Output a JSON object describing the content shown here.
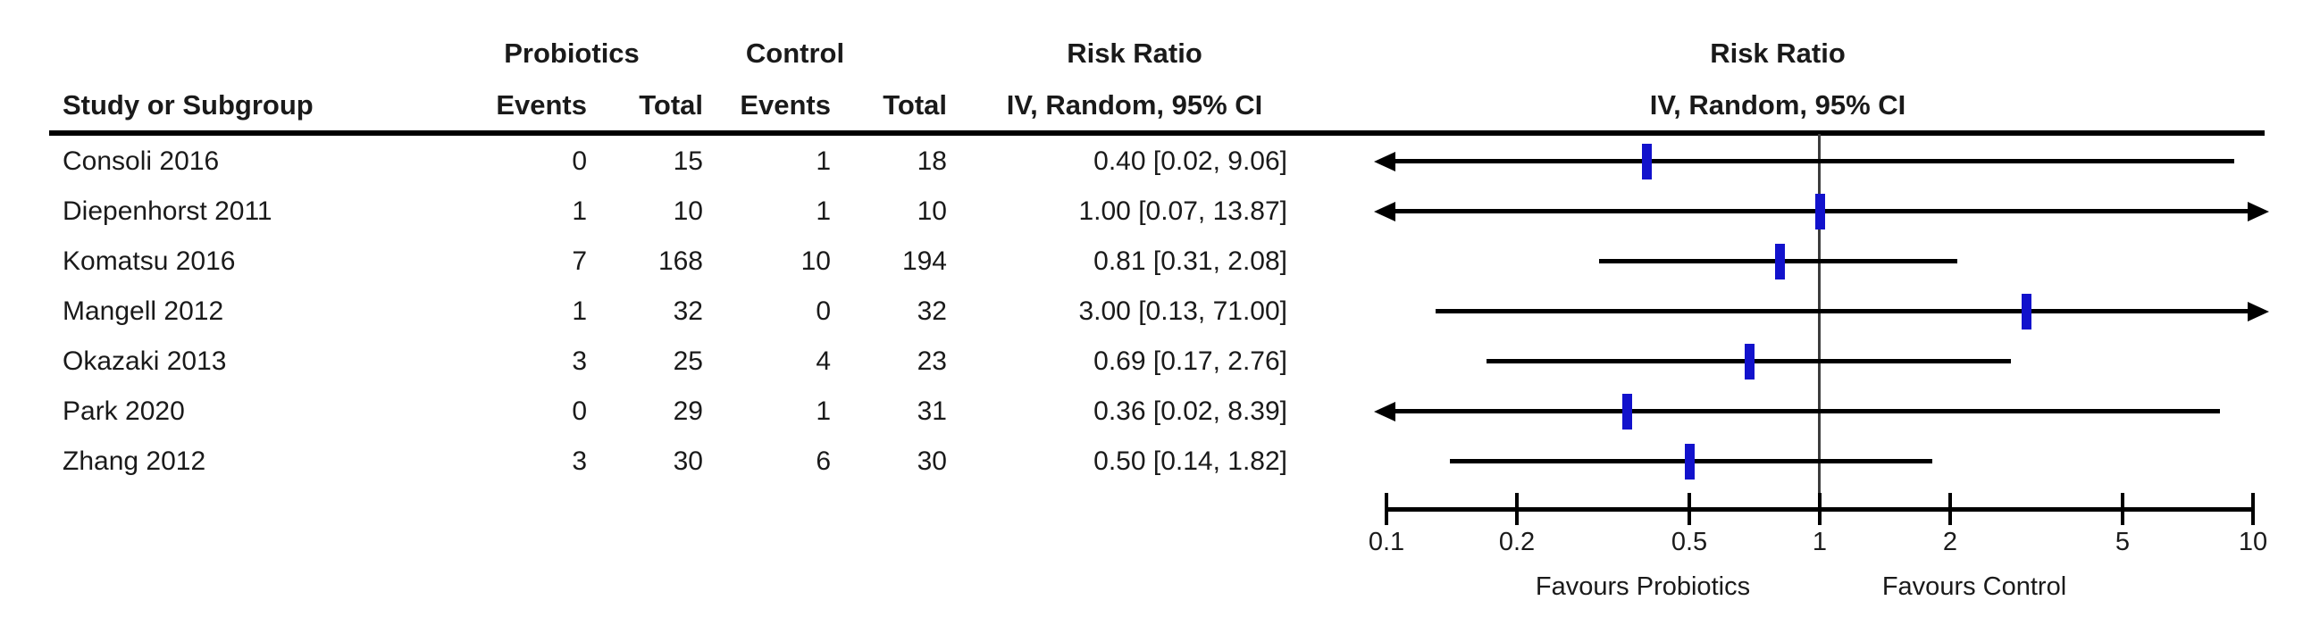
{
  "table": {
    "study_header": "Study or Subgroup",
    "group1_header": "Probiotics",
    "group2_header": "Control",
    "events_header": "Events",
    "total_header": "Total",
    "effect_header_line1": "Risk Ratio",
    "effect_header_line2": "IV, Random, 95% CI",
    "plot_header_line1": "Risk Ratio",
    "plot_header_line2": "IV, Random, 95% CI"
  },
  "chart_data": {
    "type": "forest",
    "effect_measure": "Risk Ratio",
    "method": "IV, Random, 95% CI",
    "x_scale": "log10",
    "x_range": [
      0.1,
      10
    ],
    "null_line": 1,
    "x_ticks": [
      0.1,
      0.2,
      0.5,
      1,
      2,
      5,
      10
    ],
    "x_tick_labels": [
      "0.1",
      "0.2",
      "0.5",
      "1",
      "2",
      "5",
      "10"
    ],
    "footer_left": "Favours Probiotics",
    "footer_right": "Favours Control",
    "studies": [
      {
        "name": "Consoli 2016",
        "events_exp": 0,
        "total_exp": 15,
        "events_ctrl": 1,
        "total_ctrl": 18,
        "rr": 0.4,
        "ci_low": 0.02,
        "ci_high": 9.06,
        "label": "0.40 [0.02, 9.06]"
      },
      {
        "name": "Diepenhorst 2011",
        "events_exp": 1,
        "total_exp": 10,
        "events_ctrl": 1,
        "total_ctrl": 10,
        "rr": 1.0,
        "ci_low": 0.07,
        "ci_high": 13.87,
        "label": "1.00 [0.07, 13.87]"
      },
      {
        "name": "Komatsu 2016",
        "events_exp": 7,
        "total_exp": 168,
        "events_ctrl": 10,
        "total_ctrl": 194,
        "rr": 0.81,
        "ci_low": 0.31,
        "ci_high": 2.08,
        "label": "0.81 [0.31, 2.08]"
      },
      {
        "name": "Mangell 2012",
        "events_exp": 1,
        "total_exp": 32,
        "events_ctrl": 0,
        "total_ctrl": 32,
        "rr": 3.0,
        "ci_low": 0.13,
        "ci_high": 71.0,
        "label": "3.00 [0.13, 71.00]"
      },
      {
        "name": "Okazaki 2013",
        "events_exp": 3,
        "total_exp": 25,
        "events_ctrl": 4,
        "total_ctrl": 23,
        "rr": 0.69,
        "ci_low": 0.17,
        "ci_high": 2.76,
        "label": "0.69 [0.17, 2.76]"
      },
      {
        "name": "Park 2020",
        "events_exp": 0,
        "total_exp": 29,
        "events_ctrl": 1,
        "total_ctrl": 31,
        "rr": 0.36,
        "ci_low": 0.02,
        "ci_high": 8.39,
        "label": "0.36 [0.02, 8.39]"
      },
      {
        "name": "Zhang 2012",
        "events_exp": 3,
        "total_exp": 30,
        "events_ctrl": 6,
        "total_ctrl": 30,
        "rr": 0.5,
        "ci_low": 0.14,
        "ci_high": 1.82,
        "label": "0.50 [0.14, 1.82]"
      }
    ]
  },
  "colors": {
    "marker": "#1212cc",
    "line": "#000000",
    "null_line": "#3c3c3c",
    "text": "#1a1a1a"
  }
}
